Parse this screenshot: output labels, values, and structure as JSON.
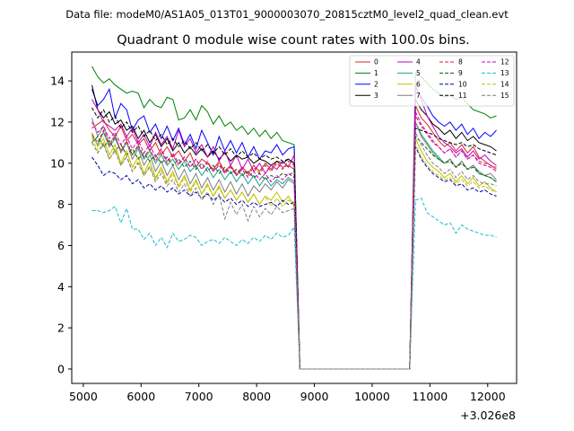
{
  "suptitle": "Data file: modeM0/AS1A05_013T01_9000003070_20815cztM0_level2_quad_clean.evt",
  "chart_data": {
    "type": "line",
    "title": "Quadrant 0 module wise count rates with 100.0s bins.",
    "xlabel": "",
    "ylabel": "",
    "x_offset_label": "+3.026e8",
    "xlim": [
      4800,
      12500
    ],
    "ylim": [
      -0.7,
      15.4
    ],
    "xticks": [
      5000,
      6000,
      7000,
      8000,
      9000,
      10000,
      11000,
      12000
    ],
    "yticks": [
      0,
      2,
      4,
      6,
      8,
      10,
      12,
      14
    ],
    "legend_location": "upper right",
    "grid": false,
    "segments": [
      {
        "x_start": 5150,
        "x_end": 8650,
        "step": 100
      },
      {
        "x_start": 10750,
        "x_end": 12150,
        "step": 100
      }
    ],
    "gap_x": [
      8750,
      8850,
      9950,
      10650
    ],
    "series": [
      {
        "name": "0",
        "color": "#d62728",
        "dash": "solid",
        "seg1": [
          11.7,
          11.9,
          12.1,
          11.6,
          11.3,
          11.8,
          11.1,
          11.4,
          10.9,
          11.2,
          10.6,
          11.0,
          10.4,
          10.8,
          10.3,
          10.6,
          10.1,
          10.5,
          9.8,
          10.2,
          10.0,
          9.7,
          10.1,
          9.6,
          9.9,
          9.4,
          9.8,
          9.5,
          9.9,
          9.6,
          10.0,
          9.7,
          10.1,
          9.8,
          9.9,
          9.7
        ],
        "seg2": [
          12.8,
          12.2,
          11.9,
          11.5,
          11.1,
          10.8,
          11.0,
          10.6,
          10.9,
          10.5,
          10.8,
          10.3,
          10.1,
          9.9,
          9.7
        ]
      },
      {
        "name": "1",
        "color": "#008000",
        "dash": "solid",
        "seg1": [
          14.7,
          14.2,
          13.9,
          14.1,
          13.8,
          13.6,
          13.4,
          13.5,
          13.4,
          12.7,
          13.1,
          12.8,
          12.7,
          13.2,
          13.1,
          12.1,
          12.2,
          12.6,
          12.1,
          12.8,
          12.5,
          11.9,
          12.3,
          11.8,
          12.0,
          11.6,
          11.8,
          11.4,
          11.7,
          11.3,
          11.6,
          11.2,
          11.5,
          11.1,
          11.0,
          10.9
        ],
        "seg2": [
          14.4,
          14.2,
          13.9,
          13.6,
          13.4,
          13.2,
          13.3,
          13.1,
          13.2,
          12.9,
          12.6,
          12.5,
          12.4,
          12.2,
          12.3
        ]
      },
      {
        "name": "2",
        "color": "#0000ff",
        "dash": "solid",
        "seg1": [
          13.6,
          12.8,
          13.1,
          13.6,
          12.2,
          12.9,
          12.6,
          11.6,
          12.1,
          12.3,
          11.5,
          11.9,
          11.2,
          11.8,
          11.1,
          11.7,
          10.9,
          11.4,
          10.7,
          11.6,
          11.0,
          10.4,
          11.3,
          10.6,
          11.1,
          10.5,
          11.0,
          10.3,
          10.8,
          10.2,
          10.6,
          10.5,
          10.9,
          10.4,
          10.7,
          10.8
        ],
        "seg2": [
          13.7,
          13.2,
          12.8,
          12.3,
          12.0,
          11.8,
          12.0,
          11.6,
          11.9,
          11.4,
          11.7,
          11.2,
          11.5,
          11.3,
          11.6
        ]
      },
      {
        "name": "3",
        "color": "#000000",
        "dash": "solid",
        "seg1": [
          13.8,
          12.6,
          12.2,
          12.5,
          11.9,
          12.1,
          11.6,
          11.8,
          11.2,
          11.6,
          11.0,
          11.4,
          10.8,
          11.2,
          10.6,
          11.0,
          10.5,
          10.8,
          10.4,
          10.7,
          10.3,
          10.6,
          10.2,
          10.5,
          10.1,
          10.4,
          10.2,
          10.3,
          10.0,
          10.2,
          10.1,
          9.9,
          10.1,
          10.0,
          10.2,
          10.0
        ],
        "seg2": [
          13.1,
          12.6,
          12.3,
          11.9,
          11.7,
          11.4,
          11.6,
          11.2,
          11.5,
          11.1,
          11.3,
          11.0,
          10.9,
          10.8,
          10.6
        ]
      },
      {
        "name": "4",
        "color": "#bf00bf",
        "dash": "solid",
        "seg1": [
          13.1,
          12.6,
          12.0,
          11.8,
          11.6,
          11.9,
          11.3,
          11.7,
          11.0,
          11.4,
          10.8,
          11.5,
          10.9,
          11.3,
          10.7,
          11.6,
          10.8,
          11.2,
          10.5,
          10.9,
          10.3,
          10.8,
          10.1,
          10.6,
          9.9,
          10.4,
          9.7,
          10.2,
          9.6,
          10.0,
          9.5,
          9.9,
          9.7,
          10.1,
          9.8,
          10.4
        ],
        "seg2": [
          13.8,
          13.1,
          12.3,
          11.8,
          11.3,
          11.0,
          10.8,
          10.5,
          10.7,
          10.3,
          10.6,
          10.2,
          10.4,
          10.1,
          9.9
        ]
      },
      {
        "name": "5",
        "color": "#17a589",
        "dash": "solid",
        "seg1": [
          11.3,
          10.9,
          11.5,
          10.8,
          11.2,
          10.6,
          11.0,
          10.4,
          10.8,
          10.2,
          10.6,
          10.0,
          10.4,
          9.9,
          10.2,
          9.7,
          10.1,
          9.6,
          9.9,
          9.4,
          9.8,
          9.3,
          9.7,
          9.2,
          9.6,
          9.1,
          9.5,
          9.0,
          9.4,
          8.9,
          9.3,
          8.9,
          9.2,
          9.0,
          9.3,
          9.1
        ],
        "seg2": [
          12.0,
          11.4,
          11.0,
          10.6,
          10.3,
          10.0,
          10.2,
          9.8,
          10.1,
          9.7,
          9.9,
          9.5,
          9.4,
          9.3,
          9.1
        ]
      },
      {
        "name": "6",
        "color": "#bfbf00",
        "dash": "solid",
        "seg1": [
          11.5,
          10.8,
          11.2,
          10.4,
          10.9,
          10.0,
          10.6,
          9.8,
          10.3,
          9.5,
          10.1,
          9.3,
          9.8,
          9.1,
          9.6,
          8.9,
          9.4,
          8.7,
          9.2,
          8.5,
          9.0,
          8.4,
          8.9,
          8.3,
          8.7,
          8.2,
          8.6,
          8.1,
          8.5,
          8.0,
          8.4,
          8.2,
          8.6,
          8.1,
          8.4,
          7.9
        ],
        "seg2": [
          11.2,
          10.6,
          10.1,
          9.8,
          9.6,
          9.3,
          9.5,
          9.1,
          9.4,
          9.0,
          9.3,
          8.9,
          9.1,
          8.8,
          8.6
        ]
      },
      {
        "name": "7",
        "color": "#7f7f7f",
        "dash": "solid",
        "seg1": [
          12.2,
          11.3,
          11.8,
          10.9,
          11.4,
          10.5,
          11.0,
          10.2,
          10.7,
          9.9,
          10.4,
          9.6,
          10.1,
          9.4,
          9.9,
          9.2,
          9.7,
          9.0,
          9.5,
          8.8,
          9.3,
          8.7,
          9.2,
          8.6,
          9.1,
          8.5,
          9.0,
          8.4,
          8.9,
          8.6,
          9.0,
          8.7,
          9.1,
          8.8,
          9.2,
          9.0
        ],
        "seg2": [
          12.0,
          11.3,
          10.9,
          10.5,
          10.2,
          10.0,
          10.2,
          9.8,
          10.1,
          9.7,
          9.9,
          9.6,
          9.4,
          9.5,
          9.2
        ]
      },
      {
        "name": "8",
        "color": "#d62728",
        "dash": "dashed",
        "seg1": [
          11.4,
          11.0,
          11.6,
          10.8,
          11.3,
          10.6,
          11.1,
          10.4,
          10.9,
          10.3,
          10.7,
          10.1,
          10.6,
          10.0,
          10.4,
          9.9,
          10.3,
          9.8,
          10.2,
          9.7,
          10.1,
          9.6,
          10.0,
          9.5,
          9.9,
          9.5,
          9.8,
          9.4,
          9.8,
          9.5,
          9.9,
          9.6,
          10.0,
          9.7,
          10.1,
          9.9
        ],
        "seg2": [
          12.3,
          11.8,
          11.4,
          11.0,
          10.8,
          10.5,
          10.7,
          10.3,
          10.6,
          10.2,
          10.4,
          10.1,
          10.0,
          9.9,
          9.8
        ]
      },
      {
        "name": "9",
        "color": "#006400",
        "dash": "dashed",
        "seg1": [
          11.0,
          11.3,
          10.8,
          11.1,
          10.6,
          10.9,
          10.4,
          10.7,
          10.2,
          10.5,
          10.1,
          10.4,
          10.0,
          10.3,
          9.9,
          10.2,
          9.8,
          10.1,
          9.7,
          10.0,
          9.6,
          9.9,
          9.5,
          9.8,
          9.5,
          9.7,
          9.4,
          9.6,
          9.3,
          9.5,
          9.2,
          9.4,
          9.3,
          9.5,
          9.4,
          9.6
        ],
        "seg2": [
          11.3,
          11.0,
          10.7,
          10.4,
          10.2,
          10.0,
          10.1,
          9.8,
          10.0,
          9.7,
          9.8,
          9.5,
          9.4,
          9.3,
          9.1
        ]
      },
      {
        "name": "10",
        "color": "#0000aa",
        "dash": "dashed",
        "seg1": [
          10.3,
          9.9,
          9.4,
          9.6,
          9.5,
          9.2,
          9.4,
          9.0,
          9.2,
          8.8,
          9.0,
          8.7,
          8.9,
          8.6,
          8.8,
          8.5,
          8.7,
          8.4,
          8.6,
          8.3,
          8.5,
          8.2,
          8.4,
          8.1,
          8.3,
          8.0,
          8.2,
          7.9,
          8.1,
          7.9,
          8.0,
          8.1,
          7.9,
          8.2,
          8.0,
          8.1
        ],
        "seg2": [
          10.8,
          10.2,
          9.8,
          9.5,
          9.3,
          9.1,
          9.2,
          8.9,
          9.0,
          8.7,
          8.8,
          8.6,
          8.7,
          8.5,
          8.4
        ]
      },
      {
        "name": "11",
        "color": "#000000",
        "dash": "dashed",
        "seg1": [
          12.7,
          12.2,
          12.6,
          12.0,
          12.3,
          11.7,
          12.0,
          11.5,
          11.8,
          11.3,
          11.6,
          11.1,
          11.4,
          10.9,
          11.2,
          10.8,
          11.1,
          10.7,
          11.0,
          10.6,
          10.9,
          10.5,
          10.8,
          10.4,
          10.7,
          10.3,
          10.6,
          10.3,
          10.5,
          10.2,
          10.4,
          10.2,
          10.3,
          10.1,
          10.2,
          10.0
        ],
        "seg2": [
          11.7,
          11.6,
          11.5,
          11.4,
          11.2,
          11.1,
          11.0,
          10.9,
          11.0,
          10.8,
          10.9,
          10.7,
          10.6,
          10.5,
          10.4
        ]
      },
      {
        "name": "12",
        "color": "#cc00cc",
        "dash": "dashed",
        "seg1": [
          12.0,
          11.5,
          11.8,
          11.2,
          11.5,
          10.9,
          11.3,
          10.7,
          11.1,
          10.5,
          10.9,
          10.3,
          10.7,
          10.1,
          10.5,
          10.0,
          10.3,
          9.8,
          10.2,
          9.7,
          10.0,
          9.6,
          9.9,
          9.5,
          9.8,
          9.4,
          9.7,
          9.3,
          9.6,
          9.2,
          9.5,
          9.1,
          9.4,
          9.2,
          9.5,
          9.3
        ],
        "seg2": [
          12.5,
          11.9,
          11.5,
          11.1,
          10.8,
          10.5,
          10.7,
          10.3,
          10.6,
          10.2,
          10.4,
          10.0,
          9.9,
          9.8,
          9.6
        ]
      },
      {
        "name": "13",
        "color": "#17becf",
        "dash": "dashed",
        "seg1": [
          7.7,
          7.7,
          7.6,
          7.7,
          7.9,
          7.1,
          7.8,
          6.8,
          6.8,
          6.3,
          6.6,
          6.0,
          6.4,
          5.9,
          6.6,
          6.2,
          6.3,
          6.5,
          6.4,
          6.0,
          6.2,
          6.3,
          6.1,
          6.4,
          6.2,
          6.0,
          6.3,
          6.1,
          6.4,
          6.2,
          6.5,
          6.3,
          6.6,
          6.4,
          6.5,
          6.9
        ],
        "seg2": [
          8.2,
          8.3,
          7.6,
          7.4,
          7.2,
          7.0,
          7.1,
          6.6,
          7.0,
          6.8,
          6.7,
          6.6,
          6.5,
          6.5,
          6.4
        ]
      },
      {
        "name": "14",
        "color": "#bfbf00",
        "dash": "dashed",
        "seg1": [
          11.2,
          10.6,
          11.0,
          10.2,
          10.7,
          9.9,
          10.4,
          9.6,
          10.1,
          9.4,
          9.9,
          9.2,
          9.7,
          9.0,
          9.5,
          8.8,
          9.3,
          8.6,
          9.1,
          8.5,
          8.9,
          8.4,
          8.8,
          8.3,
          8.7,
          8.2,
          8.6,
          8.1,
          8.5,
          8.0,
          8.4,
          7.9,
          8.3,
          7.9,
          8.2,
          8.1
        ],
        "seg2": [
          10.9,
          10.3,
          9.9,
          9.6,
          9.4,
          9.2,
          9.3,
          9.0,
          9.2,
          8.9,
          9.1,
          8.8,
          8.9,
          8.7,
          8.6
        ]
      },
      {
        "name": "15",
        "color": "#7f7f7f",
        "dash": "dashed",
        "seg1": [
          11.0,
          10.5,
          10.9,
          10.2,
          10.6,
          9.9,
          10.3,
          9.6,
          10.0,
          9.4,
          9.8,
          9.1,
          9.5,
          8.9,
          9.2,
          8.6,
          9.0,
          8.4,
          8.8,
          8.2,
          8.6,
          8.0,
          8.5,
          7.3,
          8.1,
          7.5,
          8.0,
          7.2,
          7.9,
          7.4,
          7.8,
          7.5,
          7.9,
          7.6,
          7.7,
          7.8
        ],
        "seg2": [
          11.5,
          10.9,
          10.4,
          10.0,
          9.8,
          9.5,
          9.7,
          9.3,
          9.6,
          9.2,
          9.4,
          9.1,
          9.0,
          9.0,
          8.9
        ]
      }
    ]
  }
}
